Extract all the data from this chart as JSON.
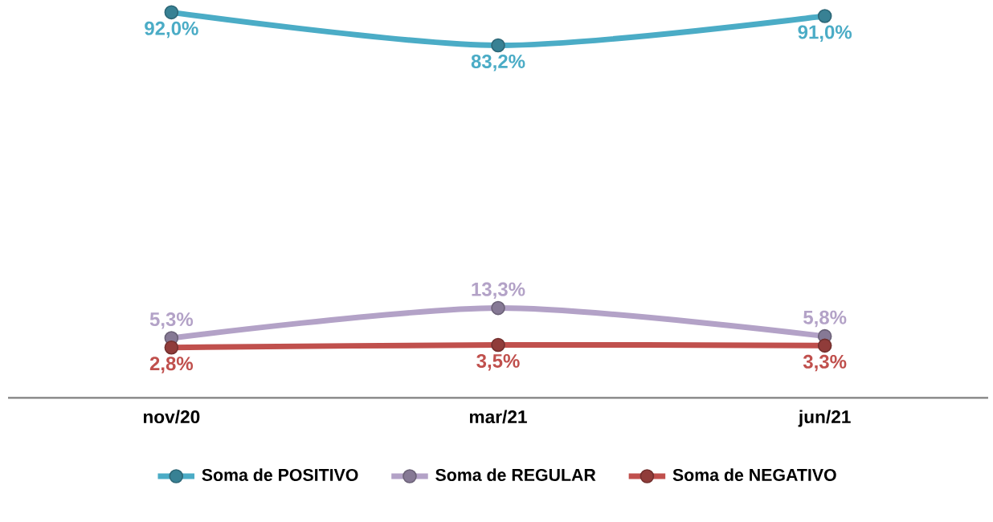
{
  "chart_data": {
    "type": "line",
    "categories": [
      "nov/20",
      "mar/21",
      "jun/21"
    ],
    "series": [
      {
        "name": "Soma de POSITIVO",
        "color": "#4bacc6",
        "values": [
          92.0,
          83.2,
          91.0
        ],
        "value_labels": [
          "92,0%",
          "83,2%",
          "91,0%"
        ]
      },
      {
        "name": "Soma de REGULAR",
        "color": "#b3a2c7",
        "values": [
          5.3,
          13.3,
          5.8
        ],
        "value_labels": [
          "5,3%",
          "13,3%",
          "5,8%"
        ]
      },
      {
        "name": "Soma de NEGATIVO",
        "color": "#c0504d",
        "values": [
          2.8,
          3.5,
          3.3
        ],
        "value_labels": [
          "2,8%",
          "3,5%",
          "3,3%"
        ]
      }
    ],
    "tick_labels": "x",
    "marker": "circle",
    "legend": "bottom",
    "grid": false
  }
}
